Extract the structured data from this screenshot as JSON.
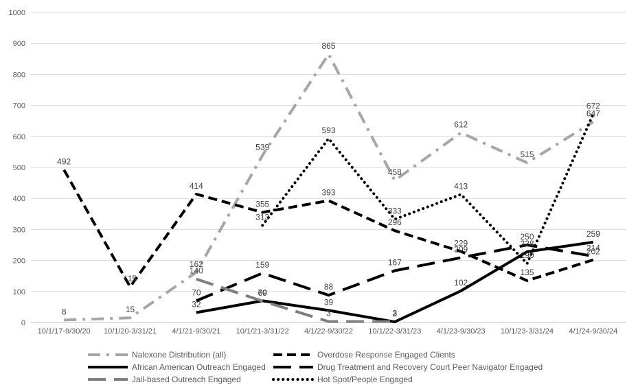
{
  "chart_data": {
    "type": "line",
    "ylim": [
      0,
      1000
    ],
    "yticks": [
      0,
      100,
      200,
      300,
      400,
      500,
      600,
      700,
      800,
      900,
      1000
    ],
    "grid": true,
    "legend_position": "bottom",
    "categories": [
      "10/1/17-9/30/20",
      "10/1/20-3/31/21",
      "4/1/21-9/30/21",
      "10/1/21-3/31/22",
      "4/1/22-9/30/22",
      "10/1/22-3/31/23",
      "4/1/23-9/30/23",
      "10/1/23-3/31/24",
      "4/1/24-9/30/24"
    ],
    "series": [
      {
        "name": "Naloxone Distribution (all)",
        "values": [
          8,
          15,
          162,
          539,
          865,
          458,
          612,
          515,
          647
        ],
        "color": "#a6a6a6",
        "dash": "dash-dot"
      },
      {
        "name": "Overdose Response Engaged Clients",
        "values": [
          492,
          115,
          414,
          355,
          393,
          296,
          229,
          135,
          202
        ],
        "color": "#000000",
        "dash": "dash"
      },
      {
        "name": "African American Outreach Engaged",
        "values": [
          null,
          null,
          32,
          70,
          39,
          2,
          102,
          228,
          259
        ],
        "color": "#000000",
        "dash": "solid"
      },
      {
        "name": "Drug Treatment and Recovery Court Peer Navigator Engaged",
        "values": [
          null,
          null,
          70,
          159,
          88,
          167,
          209,
          250,
          214
        ],
        "color": "#000000",
        "dash": "long-dash"
      },
      {
        "name": "Jail-based Outreach Engaged",
        "values": [
          null,
          null,
          140,
          69,
          3,
          3,
          null,
          null,
          null
        ],
        "color": "#7f7f7f",
        "dash": "long-dash"
      },
      {
        "name": "Hot Spot/People Engaged",
        "values": [
          null,
          null,
          null,
          313,
          593,
          333,
          413,
          190,
          672
        ],
        "color": "#000000",
        "dash": "dot"
      }
    ]
  }
}
